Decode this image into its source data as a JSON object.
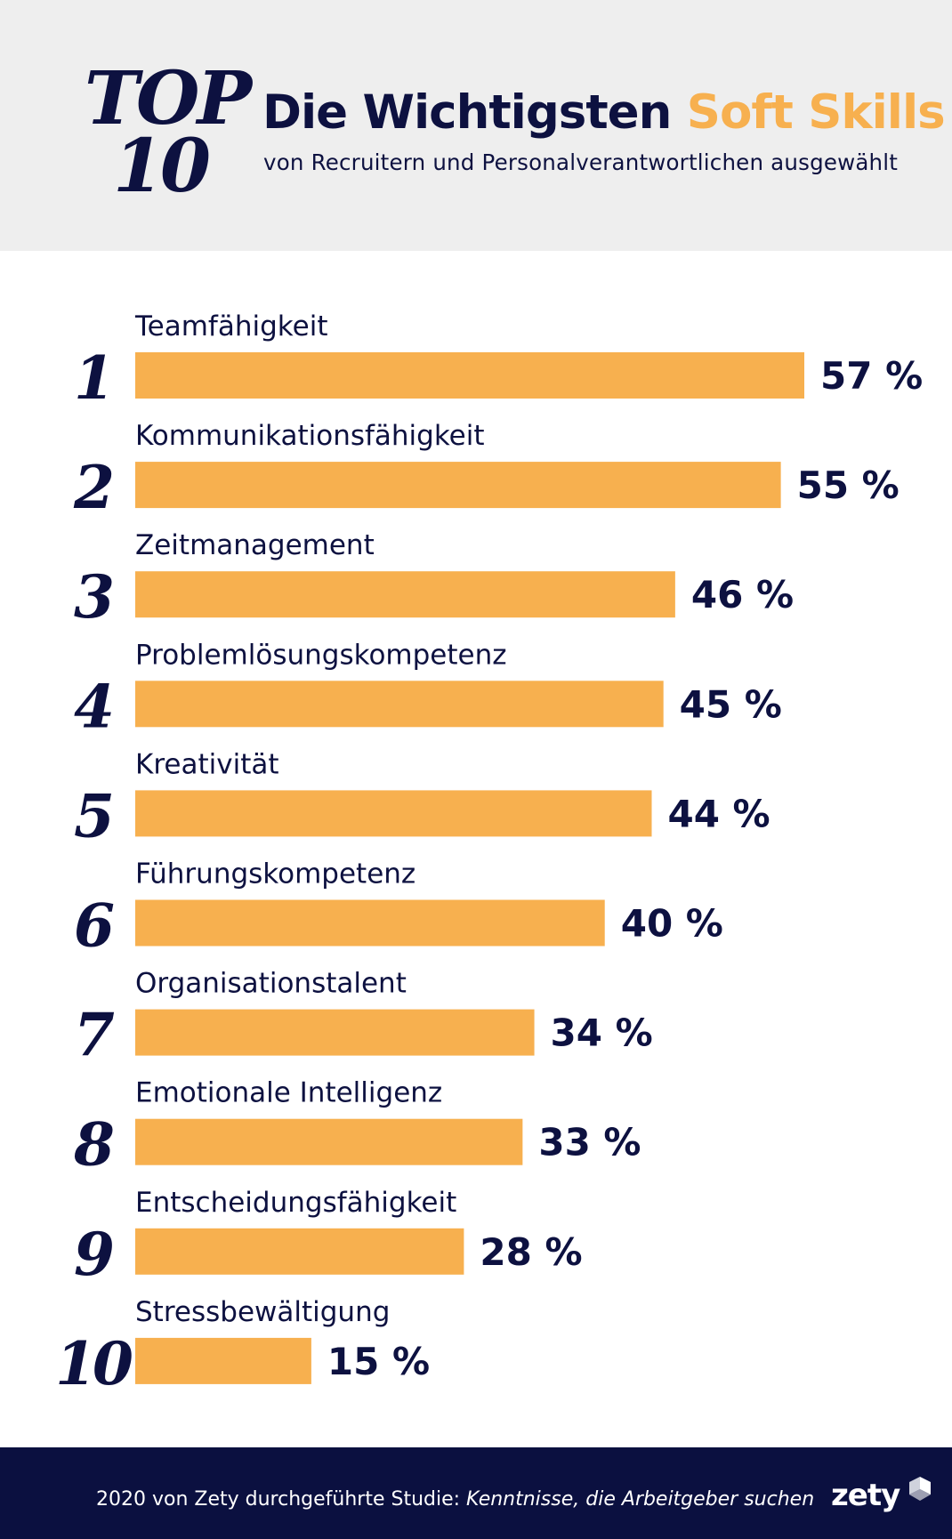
{
  "header": {
    "badge_top": "TOP",
    "badge_num": "10",
    "title_part1": "Die Wichtigsten ",
    "title_highlight": "Soft Skills",
    "subtitle": "von Recruitern und Personalverantwortlichen ausgewählt"
  },
  "colors": {
    "bar": "#f7b04f",
    "navy": "#0d1140",
    "header_bg": "#eeeeee",
    "footer_bg": "#0b1040"
  },
  "chart_data": {
    "type": "bar",
    "orientation": "horizontal",
    "ranks": [
      "1",
      "2",
      "3",
      "4",
      "5",
      "6",
      "7",
      "8",
      "9",
      "10"
    ],
    "categories": [
      "Teamfähigkeit",
      "Kommunikationsfähigkeit",
      "Zeitmanagement",
      "Problemlösungskompetenz",
      "Kreativität",
      "Führungskompetenz",
      "Organisationstalent",
      "Emotionale Intelligenz",
      "Entscheidungsfähigkeit",
      "Stressbewältigung"
    ],
    "values": [
      57,
      55,
      46,
      45,
      44,
      40,
      34,
      33,
      28,
      15
    ],
    "value_labels": [
      "57 %",
      "55 %",
      "46 %",
      "45 %",
      "44 %",
      "40 %",
      "34 %",
      "33 %",
      "28 %",
      "15 %"
    ],
    "xlim": [
      0,
      57
    ],
    "grid": false
  },
  "footer": {
    "source_text": "2020 von Zety durchgeführte Studie: ",
    "source_title": "Kenntnisse, die Arbeitgeber suchen",
    "logo": "zety"
  }
}
